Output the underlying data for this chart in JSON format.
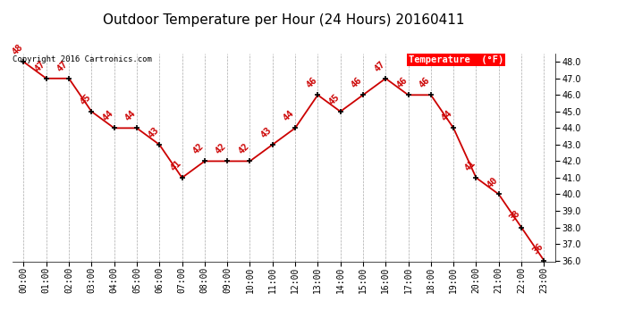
{
  "title": "Outdoor Temperature per Hour (24 Hours) 20160411",
  "copyright": "Copyright 2016 Cartronics.com",
  "legend_label": "Temperature  (°F)",
  "hours": [
    0,
    1,
    2,
    3,
    4,
    5,
    6,
    7,
    8,
    9,
    10,
    11,
    12,
    13,
    14,
    15,
    16,
    17,
    18,
    19,
    20,
    21,
    22,
    23
  ],
  "hour_labels": [
    "00:00",
    "01:00",
    "02:00",
    "03:00",
    "04:00",
    "05:00",
    "06:00",
    "07:00",
    "08:00",
    "09:00",
    "10:00",
    "11:00",
    "12:00",
    "13:00",
    "14:00",
    "15:00",
    "16:00",
    "17:00",
    "18:00",
    "19:00",
    "20:00",
    "21:00",
    "22:00",
    "23:00"
  ],
  "temps": [
    48,
    47,
    47,
    45,
    44,
    44,
    43,
    41,
    42,
    42,
    42,
    43,
    44,
    46,
    45,
    46,
    47,
    46,
    46,
    44,
    41,
    40,
    38,
    36
  ],
  "line_color": "#cc0000",
  "marker_color": "#000000",
  "label_color": "#cc0000",
  "bg_color": "#ffffff",
  "grid_color": "#aaaaaa",
  "ylim_min": 36.0,
  "ylim_max": 48.0,
  "ytick_step": 1.0,
  "title_fontsize": 11,
  "axis_fontsize": 7,
  "label_fontsize": 7.5,
  "copyright_fontsize": 6.5,
  "legend_fontsize": 7.5
}
